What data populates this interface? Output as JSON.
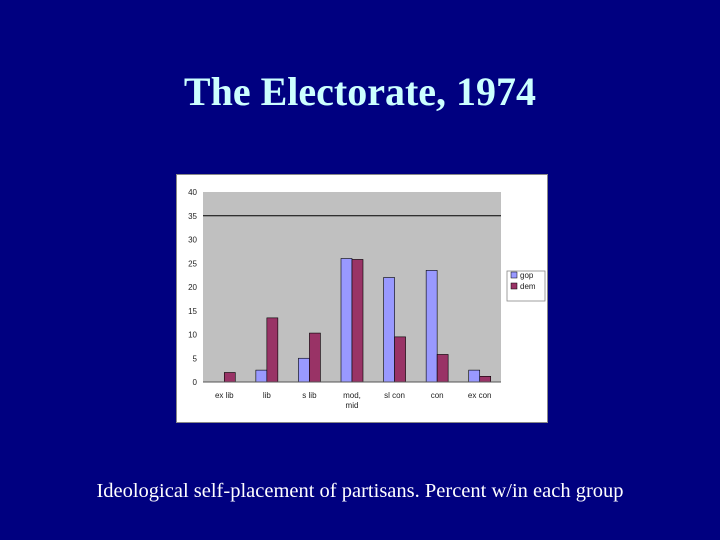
{
  "slide": {
    "title": "The Electorate, 1974",
    "caption": "Ideological self-placement of partisans.  Percent w/in  each group",
    "background": "#000080",
    "title_color": "#ccffff"
  },
  "chart_data": {
    "type": "bar",
    "categories": [
      "ex lib",
      "lib",
      "s lib",
      "mod, mid",
      "sl con",
      "con",
      "ex con"
    ],
    "series": [
      {
        "name": "gop",
        "color": "#9999ff",
        "values": [
          0,
          2.5,
          5,
          26,
          22,
          23.5,
          2.5
        ]
      },
      {
        "name": "dem",
        "color": "#993366",
        "values": [
          2,
          13.5,
          10.3,
          25.8,
          9.5,
          5.8,
          1.2
        ]
      }
    ],
    "ylim": [
      0,
      40
    ],
    "yticks": [
      "0",
      "5",
      "10",
      "15",
      "20",
      "25",
      "30",
      "35",
      "40"
    ],
    "reference_line": 35,
    "plot_background": "#c0c0c0",
    "grid": false,
    "legend_position": "right",
    "xlabel": "",
    "ylabel": "",
    "title": ""
  }
}
